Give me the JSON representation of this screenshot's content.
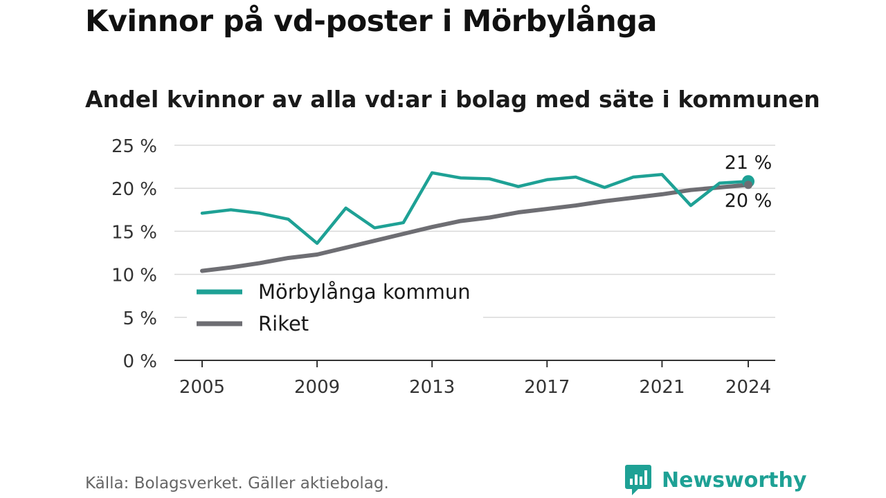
{
  "title": "Kvinnor på vd-poster i Mörbylånga",
  "subtitle": "Andel kvinnor av alla vd:ar i bolag med säte i kommunen",
  "source": "Källa: Bolagsverket. Gäller aktiebolag.",
  "brand": {
    "name": "Newsworthy",
    "icon": "newsworthy-logo-icon",
    "color": "#1ea195"
  },
  "chart_data": {
    "type": "line",
    "x": [
      2005,
      2006,
      2007,
      2008,
      2009,
      2010,
      2011,
      2012,
      2013,
      2014,
      2015,
      2016,
      2017,
      2018,
      2019,
      2020,
      2021,
      2022,
      2023,
      2024
    ],
    "series": [
      {
        "name": "Mörbylånga kommun",
        "color": "#1ea195",
        "values": [
          17.1,
          17.5,
          17.1,
          16.4,
          13.6,
          17.7,
          15.4,
          16.0,
          21.8,
          21.2,
          21.1,
          20.2,
          21.0,
          21.3,
          20.1,
          21.3,
          21.6,
          18.0,
          20.6,
          20.8
        ],
        "end_label": "21 %"
      },
      {
        "name": "Riket",
        "color": "#6e6e73",
        "values": [
          10.4,
          10.8,
          11.3,
          11.9,
          12.3,
          13.1,
          13.9,
          14.7,
          15.5,
          16.2,
          16.6,
          17.2,
          17.6,
          18.0,
          18.5,
          18.9,
          19.3,
          19.8,
          20.1,
          20.4
        ],
        "end_label": "20 %"
      }
    ],
    "xticks": [
      2005,
      2009,
      2013,
      2017,
      2021,
      2024
    ],
    "yticks": [
      0,
      5,
      10,
      15,
      20,
      25
    ],
    "ytick_labels": [
      "0 %",
      "5 %",
      "10 %",
      "15 %",
      "20 %",
      "25 %"
    ],
    "xlim": [
      2005,
      2024
    ],
    "ylim": [
      0,
      25
    ],
    "grid": "horizontal",
    "legend": "bottom-left"
  }
}
